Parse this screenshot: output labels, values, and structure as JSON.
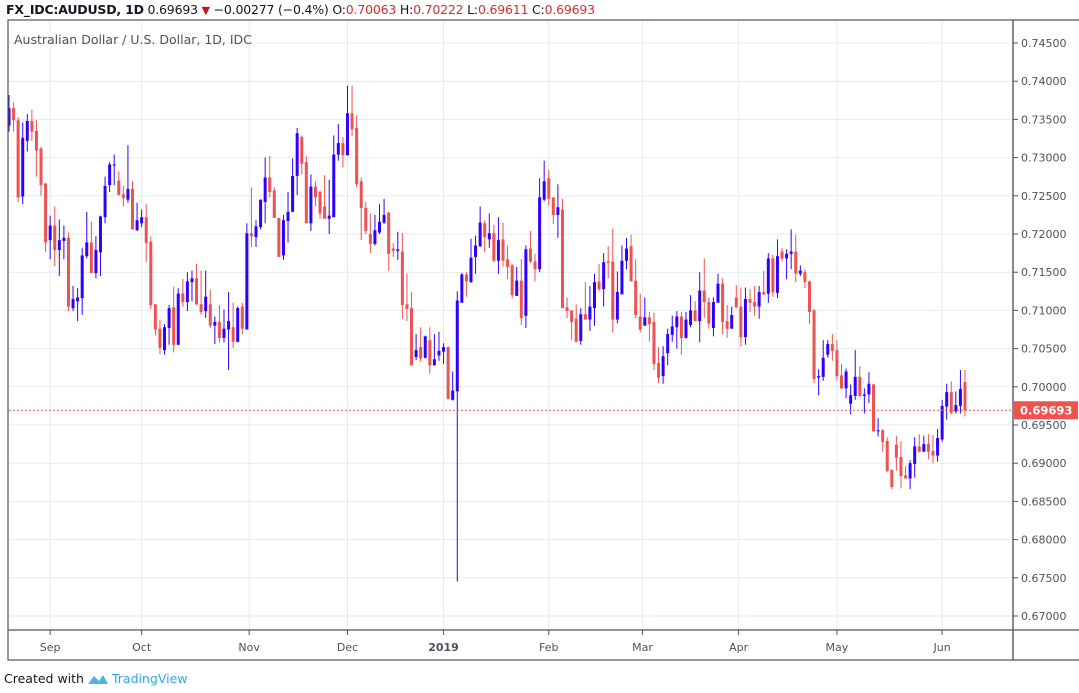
{
  "header": {
    "symbol": "FX_IDC:AUDUSD, 1D",
    "last": "0.69693",
    "direction_icon": "triangle-down-icon",
    "change": "−0.00277 (−0.4%)",
    "o_label": "O:",
    "o": "0.70063",
    "h_label": "H:",
    "h": "0.70222",
    "l_label": "L:",
    "l": "0.69611",
    "c_label": "C:",
    "c": "0.69693"
  },
  "subtitle": "Australian Dollar / U.S. Dollar, 1D, IDC",
  "footer": {
    "created_with": "Created with",
    "brand": "TradingView"
  },
  "colors": {
    "up": "#3000ff",
    "down": "#ef5350",
    "grid": "#e1ecf2",
    "frame": "#50535e",
    "last_price": "#ef5350"
  },
  "chart_data": {
    "type": "candlestick",
    "title": "Australian Dollar / U.S. Dollar, 1D, IDC",
    "ylim": [
      0.6675,
      0.7475
    ],
    "grid": true,
    "last_price": 0.69693,
    "last_price_label": "0.69693",
    "y_ticks": [
      "0.74500",
      "0.74000",
      "0.73500",
      "0.73000",
      "0.72500",
      "0.72000",
      "0.71500",
      "0.71000",
      "0.70500",
      "0.70000",
      "0.69500",
      "0.69000",
      "0.68500",
      "0.68000",
      "0.67500",
      "0.67000"
    ],
    "x_ticks": [
      {
        "label": "Sep",
        "at_bar": 9
      },
      {
        "label": "Oct",
        "at_bar": 29
      },
      {
        "label": "Nov",
        "at_bar": 52.5
      },
      {
        "label": "Dec",
        "at_bar": 74
      },
      {
        "label": "2019",
        "at_bar": 95
      },
      {
        "label": "Feb",
        "at_bar": 118
      },
      {
        "label": "Mar",
        "at_bar": 138.5
      },
      {
        "label": "Apr",
        "at_bar": 159.5
      },
      {
        "label": "May",
        "at_bar": 181
      },
      {
        "label": "Jun",
        "at_bar": 204
      }
    ],
    "ohlc_fields": [
      "open",
      "high",
      "low",
      "close"
    ],
    "candles": [
      [
        0.7342,
        0.7382,
        0.7334,
        0.7365
      ],
      [
        0.7365,
        0.7372,
        0.7334,
        0.7349
      ],
      [
        0.7349,
        0.7353,
        0.7242,
        0.7248
      ],
      [
        0.7249,
        0.7346,
        0.7239,
        0.7326
      ],
      [
        0.7322,
        0.7357,
        0.7308,
        0.7348
      ],
      [
        0.7348,
        0.7363,
        0.7322,
        0.7334
      ],
      [
        0.7335,
        0.7349,
        0.7275,
        0.7309
      ],
      [
        0.7312,
        0.7314,
        0.725,
        0.7264
      ],
      [
        0.7266,
        0.7267,
        0.7176,
        0.7189
      ],
      [
        0.7192,
        0.7224,
        0.7167,
        0.7211
      ],
      [
        0.7211,
        0.7236,
        0.7158,
        0.7179
      ],
      [
        0.7179,
        0.7219,
        0.7145,
        0.7192
      ],
      [
        0.7191,
        0.7211,
        0.7167,
        0.7195
      ],
      [
        0.7195,
        0.7202,
        0.7099,
        0.7105
      ],
      [
        0.7103,
        0.7132,
        0.7099,
        0.7115
      ],
      [
        0.7112,
        0.7129,
        0.7086,
        0.7117
      ],
      [
        0.7116,
        0.7182,
        0.7094,
        0.7172
      ],
      [
        0.7171,
        0.7229,
        0.7168,
        0.7189
      ],
      [
        0.7189,
        0.7216,
        0.7149,
        0.7149
      ],
      [
        0.7149,
        0.7197,
        0.7142,
        0.7179
      ],
      [
        0.7176,
        0.7224,
        0.7145,
        0.7223
      ],
      [
        0.7222,
        0.7275,
        0.7214,
        0.7263
      ],
      [
        0.7264,
        0.7294,
        0.7255,
        0.7291
      ],
      [
        0.729,
        0.7304,
        0.7264,
        0.7291
      ],
      [
        0.727,
        0.7282,
        0.7251,
        0.7251
      ],
      [
        0.7252,
        0.7263,
        0.7236,
        0.7247
      ],
      [
        0.7245,
        0.7316,
        0.7241,
        0.7259
      ],
      [
        0.7259,
        0.7269,
        0.7206,
        0.7206
      ],
      [
        0.7205,
        0.7241,
        0.7204,
        0.7218
      ],
      [
        0.7214,
        0.7232,
        0.7209,
        0.7222
      ],
      [
        0.7222,
        0.7239,
        0.7163,
        0.7188
      ],
      [
        0.719,
        0.7197,
        0.7102,
        0.7107
      ],
      [
        0.7108,
        0.7108,
        0.7067,
        0.7075
      ],
      [
        0.7076,
        0.7088,
        0.7043,
        0.7051
      ],
      [
        0.7048,
        0.7082,
        0.7042,
        0.7078
      ],
      [
        0.7077,
        0.7107,
        0.7055,
        0.7103
      ],
      [
        0.7104,
        0.7131,
        0.7045,
        0.7055
      ],
      [
        0.7055,
        0.7129,
        0.7055,
        0.7122
      ],
      [
        0.7122,
        0.7141,
        0.7105,
        0.7111
      ],
      [
        0.7111,
        0.715,
        0.7099,
        0.7138
      ],
      [
        0.7137,
        0.7152,
        0.7112,
        0.7142
      ],
      [
        0.7142,
        0.7161,
        0.7107,
        0.7108
      ],
      [
        0.7108,
        0.7152,
        0.7094,
        0.7098
      ],
      [
        0.7099,
        0.7152,
        0.709,
        0.7118
      ],
      [
        0.7108,
        0.7127,
        0.7077,
        0.708
      ],
      [
        0.708,
        0.7092,
        0.7056,
        0.7085
      ],
      [
        0.7085,
        0.7107,
        0.7058,
        0.7064
      ],
      [
        0.7064,
        0.7101,
        0.7058,
        0.7076
      ],
      [
        0.7075,
        0.7124,
        0.7022,
        0.7086
      ],
      [
        0.7078,
        0.711,
        0.7051,
        0.7059
      ],
      [
        0.7059,
        0.7105,
        0.7058,
        0.7103
      ],
      [
        0.7105,
        0.711,
        0.7069,
        0.7076
      ],
      [
        0.7075,
        0.7214,
        0.7075,
        0.7201
      ],
      [
        0.7201,
        0.7261,
        0.7183,
        0.7197
      ],
      [
        0.7196,
        0.7218,
        0.7183,
        0.721
      ],
      [
        0.7209,
        0.7245,
        0.7206,
        0.7245
      ],
      [
        0.7242,
        0.73,
        0.7214,
        0.7274
      ],
      [
        0.7274,
        0.7302,
        0.7248,
        0.7255
      ],
      [
        0.7257,
        0.7261,
        0.7221,
        0.7221
      ],
      [
        0.7221,
        0.7221,
        0.717,
        0.717
      ],
      [
        0.7172,
        0.7225,
        0.7166,
        0.7218
      ],
      [
        0.7217,
        0.7255,
        0.7189,
        0.7229
      ],
      [
        0.7229,
        0.7299,
        0.7229,
        0.7276
      ],
      [
        0.7276,
        0.7339,
        0.7251,
        0.7332
      ],
      [
        0.7327,
        0.7329,
        0.7278,
        0.7292
      ],
      [
        0.7294,
        0.7302,
        0.7214,
        0.7214
      ],
      [
        0.7214,
        0.7278,
        0.7204,
        0.7262
      ],
      [
        0.7262,
        0.7269,
        0.7236,
        0.7248
      ],
      [
        0.7255,
        0.7257,
        0.722,
        0.7227
      ],
      [
        0.7236,
        0.7277,
        0.722,
        0.722
      ],
      [
        0.722,
        0.7271,
        0.72,
        0.7224
      ],
      [
        0.7222,
        0.7329,
        0.7222,
        0.7304
      ],
      [
        0.7304,
        0.7344,
        0.7296,
        0.7319
      ],
      [
        0.7319,
        0.7327,
        0.7287,
        0.7303
      ],
      [
        0.7303,
        0.7394,
        0.7303,
        0.7358
      ],
      [
        0.7358,
        0.7394,
        0.7328,
        0.7337
      ],
      [
        0.7339,
        0.7356,
        0.7261,
        0.7265
      ],
      [
        0.7269,
        0.7274,
        0.7192,
        0.7234
      ],
      [
        0.7234,
        0.7242,
        0.72,
        0.7204
      ],
      [
        0.72,
        0.7227,
        0.7175,
        0.7187
      ],
      [
        0.7187,
        0.7225,
        0.7185,
        0.7205
      ],
      [
        0.7202,
        0.7239,
        0.72,
        0.7216
      ],
      [
        0.7215,
        0.7246,
        0.7213,
        0.7225
      ],
      [
        0.7228,
        0.7229,
        0.7152,
        0.7174
      ],
      [
        0.7181,
        0.7188,
        0.717,
        0.7178
      ],
      [
        0.7178,
        0.7203,
        0.7166,
        0.718
      ],
      [
        0.7177,
        0.7201,
        0.7089,
        0.7107
      ],
      [
        0.7108,
        0.7148,
        0.7086,
        0.7102
      ],
      [
        0.7103,
        0.7124,
        0.7028,
        0.7028
      ],
      [
        0.7039,
        0.7069,
        0.7035,
        0.7048
      ],
      [
        0.7052,
        0.7078,
        0.7033,
        0.7037
      ],
      [
        0.7038,
        0.7067,
        0.7037,
        0.7066
      ],
      [
        0.7061,
        0.7078,
        0.7017,
        0.7028
      ],
      [
        0.7028,
        0.7069,
        0.7028,
        0.7036
      ],
      [
        0.7041,
        0.7072,
        0.7034,
        0.7047
      ],
      [
        0.7046,
        0.7057,
        0.703,
        0.7052
      ],
      [
        0.7052,
        0.7053,
        0.6984,
        0.6984
      ],
      [
        0.6983,
        0.702,
        0.6982,
        0.6995
      ],
      [
        0.6994,
        0.7125,
        0.6745,
        0.7113
      ],
      [
        0.711,
        0.7149,
        0.711,
        0.7147
      ],
      [
        0.7147,
        0.715,
        0.7118,
        0.7138
      ],
      [
        0.7137,
        0.7194,
        0.7136,
        0.7169
      ],
      [
        0.717,
        0.7198,
        0.7148,
        0.7185
      ],
      [
        0.7184,
        0.7236,
        0.7183,
        0.7215
      ],
      [
        0.7214,
        0.7218,
        0.7176,
        0.7196
      ],
      [
        0.7193,
        0.7227,
        0.7182,
        0.7201
      ],
      [
        0.7201,
        0.7212,
        0.7163,
        0.7165
      ],
      [
        0.7165,
        0.7222,
        0.7148,
        0.7192
      ],
      [
        0.7193,
        0.7215,
        0.7157,
        0.7165
      ],
      [
        0.7167,
        0.7185,
        0.7141,
        0.7157
      ],
      [
        0.7159,
        0.7161,
        0.7116,
        0.712
      ],
      [
        0.7119,
        0.7157,
        0.7119,
        0.7139
      ],
      [
        0.7139,
        0.7167,
        0.7081,
        0.709
      ],
      [
        0.7093,
        0.7185,
        0.7077,
        0.718
      ],
      [
        0.7181,
        0.7204,
        0.7162,
        0.7164
      ],
      [
        0.7164,
        0.7174,
        0.7138,
        0.7154
      ],
      [
        0.7154,
        0.7273,
        0.715,
        0.7248
      ],
      [
        0.7245,
        0.7296,
        0.7243,
        0.7269
      ],
      [
        0.7273,
        0.7284,
        0.7238,
        0.7246
      ],
      [
        0.7248,
        0.7248,
        0.7213,
        0.7225
      ],
      [
        0.7225,
        0.7265,
        0.7195,
        0.7235
      ],
      [
        0.7232,
        0.7246,
        0.7103,
        0.7103
      ],
      [
        0.7104,
        0.7117,
        0.709,
        0.7099
      ],
      [
        0.71,
        0.71,
        0.7061,
        0.7085
      ],
      [
        0.7089,
        0.7108,
        0.7058,
        0.7059
      ],
      [
        0.706,
        0.7103,
        0.7055,
        0.7095
      ],
      [
        0.7095,
        0.7137,
        0.7088,
        0.7088
      ],
      [
        0.7088,
        0.7132,
        0.7073,
        0.7105
      ],
      [
        0.7103,
        0.7148,
        0.708,
        0.7137
      ],
      [
        0.7138,
        0.7161,
        0.7125,
        0.7128
      ],
      [
        0.7128,
        0.7175,
        0.7105,
        0.7163
      ],
      [
        0.7164,
        0.7184,
        0.7142,
        0.7162
      ],
      [
        0.7164,
        0.7207,
        0.7071,
        0.7088
      ],
      [
        0.7088,
        0.7151,
        0.7083,
        0.7124
      ],
      [
        0.7121,
        0.7185,
        0.7121,
        0.7165
      ],
      [
        0.7165,
        0.7195,
        0.7154,
        0.7181
      ],
      [
        0.7184,
        0.7199,
        0.7138,
        0.7138
      ],
      [
        0.7139,
        0.7167,
        0.709,
        0.7094
      ],
      [
        0.7092,
        0.7122,
        0.7071,
        0.7075
      ],
      [
        0.708,
        0.7117,
        0.708,
        0.7091
      ],
      [
        0.7091,
        0.7098,
        0.7059,
        0.7082
      ],
      [
        0.7085,
        0.7097,
        0.7022,
        0.703
      ],
      [
        0.7031,
        0.7052,
        0.7005,
        0.7012
      ],
      [
        0.7014,
        0.7053,
        0.7004,
        0.704
      ],
      [
        0.7044,
        0.7076,
        0.7028,
        0.7069
      ],
      [
        0.7068,
        0.7093,
        0.7059,
        0.7079
      ],
      [
        0.7078,
        0.7099,
        0.705,
        0.7092
      ],
      [
        0.7092,
        0.7098,
        0.7042,
        0.7064
      ],
      [
        0.7064,
        0.7098,
        0.7063,
        0.7088
      ],
      [
        0.7081,
        0.712,
        0.7078,
        0.71
      ],
      [
        0.71,
        0.7112,
        0.7086,
        0.7086
      ],
      [
        0.7086,
        0.715,
        0.7058,
        0.7126
      ],
      [
        0.7126,
        0.7168,
        0.709,
        0.7111
      ],
      [
        0.7111,
        0.7117,
        0.7076,
        0.7083
      ],
      [
        0.7077,
        0.7117,
        0.7066,
        0.7111
      ],
      [
        0.711,
        0.7148,
        0.711,
        0.7135
      ],
      [
        0.7135,
        0.7142,
        0.7069,
        0.7085
      ],
      [
        0.7086,
        0.7107,
        0.7064,
        0.7076
      ],
      [
        0.7076,
        0.7105,
        0.7076,
        0.7094
      ],
      [
        0.7117,
        0.7133,
        0.7103,
        0.7104
      ],
      [
        0.7105,
        0.713,
        0.7053,
        0.7065
      ],
      [
        0.7065,
        0.713,
        0.7055,
        0.7115
      ],
      [
        0.7115,
        0.7128,
        0.7098,
        0.711
      ],
      [
        0.7111,
        0.7132,
        0.7093,
        0.7105
      ],
      [
        0.7105,
        0.7132,
        0.7089,
        0.7124
      ],
      [
        0.7124,
        0.7152,
        0.712,
        0.7121
      ],
      [
        0.7122,
        0.7175,
        0.711,
        0.7168
      ],
      [
        0.7168,
        0.7173,
        0.7118,
        0.7124
      ],
      [
        0.7123,
        0.7193,
        0.7116,
        0.7171
      ],
      [
        0.7177,
        0.7182,
        0.7164,
        0.7168
      ],
      [
        0.7168,
        0.718,
        0.7141,
        0.7174
      ],
      [
        0.7174,
        0.7206,
        0.7154,
        0.7177
      ],
      [
        0.7177,
        0.7199,
        0.7137,
        0.7148
      ],
      [
        0.7148,
        0.7159,
        0.7145,
        0.7152
      ],
      [
        0.715,
        0.7154,
        0.7129,
        0.7137
      ],
      [
        0.7138,
        0.7139,
        0.7082,
        0.7098
      ],
      [
        0.71,
        0.7102,
        0.7005,
        0.701
      ],
      [
        0.7012,
        0.7023,
        0.6989,
        0.7014
      ],
      [
        0.7013,
        0.7061,
        0.7008,
        0.7038
      ],
      [
        0.7042,
        0.7061,
        0.7038,
        0.7056
      ],
      [
        0.7056,
        0.7069,
        0.7034,
        0.7047
      ],
      [
        0.7048,
        0.7061,
        0.7008,
        0.7014
      ],
      [
        0.7015,
        0.703,
        0.6997,
        0.6998
      ],
      [
        0.6998,
        0.7024,
        0.6985,
        0.702
      ],
      [
        0.6978,
        0.7003,
        0.6964,
        0.6989
      ],
      [
        0.6988,
        0.7048,
        0.6983,
        0.7013
      ],
      [
        0.7013,
        0.7027,
        0.6987,
        0.6988
      ],
      [
        0.6988,
        0.6998,
        0.6965,
        0.699
      ],
      [
        0.699,
        0.7019,
        0.6979,
        0.7004
      ],
      [
        0.7003,
        0.7004,
        0.6941,
        0.6942
      ],
      [
        0.6943,
        0.6959,
        0.6935,
        0.6943
      ],
      [
        0.6943,
        0.6945,
        0.6915,
        0.6928
      ],
      [
        0.6929,
        0.6934,
        0.6888,
        0.689
      ],
      [
        0.6891,
        0.6892,
        0.6866,
        0.6869
      ],
      [
        0.6924,
        0.6936,
        0.689,
        0.6907
      ],
      [
        0.6908,
        0.6929,
        0.6867,
        0.6883
      ],
      [
        0.6884,
        0.6896,
        0.688,
        0.688
      ],
      [
        0.688,
        0.6904,
        0.6866,
        0.69
      ],
      [
        0.6899,
        0.6934,
        0.6881,
        0.6922
      ],
      [
        0.6922,
        0.6938,
        0.6914,
        0.6915
      ],
      [
        0.6915,
        0.6936,
        0.6915,
        0.6925
      ],
      [
        0.6925,
        0.6938,
        0.6905,
        0.6915
      ],
      [
        0.6916,
        0.6937,
        0.69,
        0.691
      ],
      [
        0.691,
        0.6945,
        0.6902,
        0.6933
      ],
      [
        0.6931,
        0.6983,
        0.6928,
        0.6975
      ],
      [
        0.6974,
        0.7004,
        0.6957,
        0.6993
      ],
      [
        0.6993,
        0.7007,
        0.6964,
        0.6966
      ],
      [
        0.6968,
        0.6994,
        0.6965,
        0.6976
      ],
      [
        0.6975,
        0.7022,
        0.6965,
        0.6997
      ],
      [
        0.70063,
        0.70222,
        0.69611,
        0.69693
      ]
    ]
  }
}
